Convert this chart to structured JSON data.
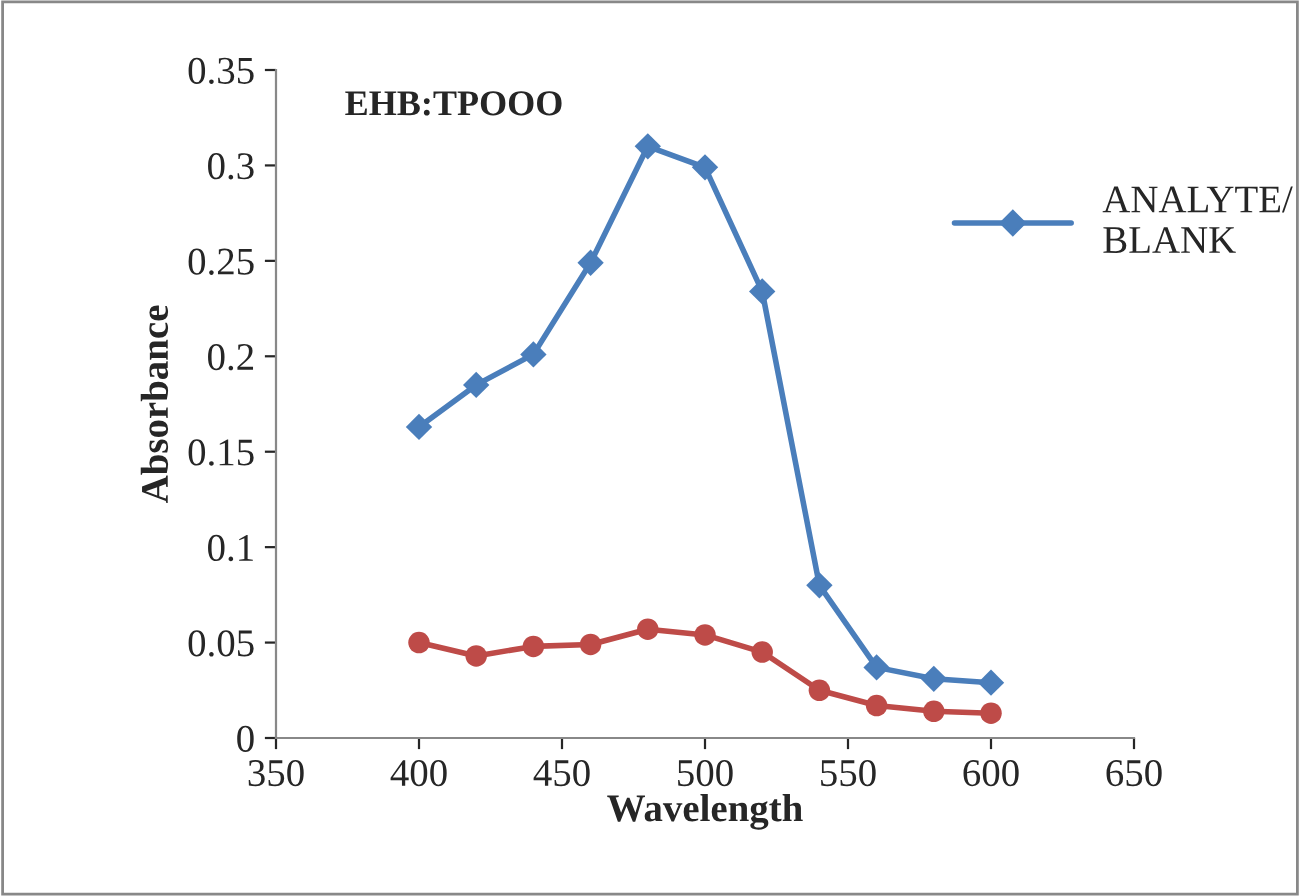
{
  "chart_data": {
    "type": "line",
    "title": "EHB:TPOOO",
    "xlabel": "Wavelength",
    "ylabel": "Absorbance",
    "x": [
      400,
      420,
      440,
      460,
      480,
      500,
      520,
      540,
      560,
      580,
      600
    ],
    "series": [
      {
        "name": "ANALYTE/\nBLANK",
        "color": "#4a7ebb",
        "marker": "diamond",
        "values": [
          0.163,
          0.185,
          0.201,
          0.249,
          0.31,
          0.299,
          0.234,
          0.08,
          0.037,
          0.031,
          0.029
        ]
      },
      {
        "color": "#be4b48",
        "marker": "circle",
        "values": [
          0.05,
          0.043,
          0.048,
          0.049,
          0.057,
          0.054,
          0.045,
          0.025,
          0.017,
          0.014,
          0.013
        ]
      }
    ],
    "xlim": [
      350,
      650
    ],
    "xticks": [
      350,
      400,
      450,
      500,
      550,
      600,
      650
    ],
    "ylim": [
      0,
      0.35
    ],
    "yticks": [
      {
        "value": 0,
        "label": "0"
      },
      0.05,
      {
        "value": 0.1,
        "label": "0.1"
      },
      0.15,
      {
        "value": 0.2,
        "label": "0.2"
      },
      0.25,
      {
        "value": 0.3,
        "label": "0.3"
      },
      0.35
    ],
    "grid": false,
    "legend": "right",
    "line_style": "solid"
  }
}
